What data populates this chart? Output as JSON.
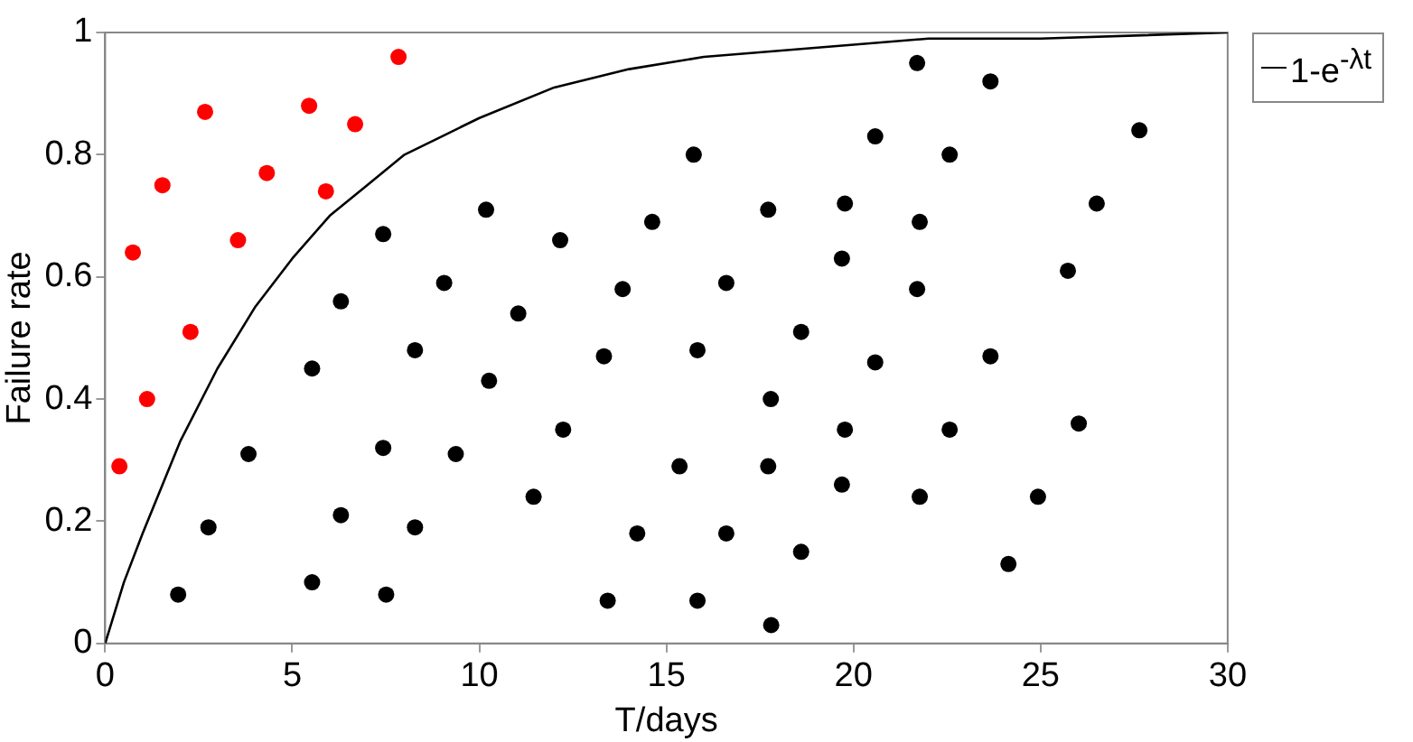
{
  "chart_data": {
    "type": "scatter",
    "xlabel": "T/days",
    "ylabel": "Failure rate",
    "xlim": [
      0,
      30
    ],
    "ylim": [
      0,
      1
    ],
    "xticks": [
      0,
      5,
      10,
      15,
      20,
      25,
      30
    ],
    "yticks": [
      0,
      0.2,
      0.4,
      0.6,
      0.8,
      1
    ],
    "grid": false,
    "legend": "top right",
    "marker": "circle",
    "series": [
      {
        "color": "#ff0000",
        "x": [
          0.38,
          0.74,
          1.12,
          1.53,
          2.28,
          2.67,
          3.55,
          4.32,
          5.45,
          5.9,
          6.68,
          7.84
        ],
        "values": [
          0.29,
          0.64,
          0.4,
          0.75,
          0.51,
          0.87,
          0.66,
          0.77,
          0.88,
          0.74,
          0.85,
          0.96
        ]
      },
      {
        "color": "#000000",
        "x": [
          1.95,
          2.76,
          3.83,
          5.53,
          5.53,
          6.3,
          6.3,
          7.43,
          7.43,
          7.51,
          8.28,
          8.28,
          9.06,
          9.37,
          10.18,
          10.26,
          11.04,
          11.45,
          12.16,
          12.24,
          13.33,
          13.43,
          13.83,
          14.22,
          14.62,
          15.35,
          15.73,
          15.83,
          15.83,
          16.6,
          16.6,
          17.72,
          17.79,
          17.72,
          17.8,
          18.6,
          18.6,
          19.77,
          19.69,
          19.77,
          19.69,
          21.7,
          23.66,
          20.58,
          22.57,
          27.64,
          26.5,
          21.77,
          25.73,
          21.7,
          20.58,
          23.66,
          22.57,
          26.02,
          21.77,
          24.93,
          24.14
        ],
        "values": [
          0.08,
          0.19,
          0.31,
          0.1,
          0.45,
          0.21,
          0.56,
          0.67,
          0.32,
          0.08,
          0.48,
          0.19,
          0.59,
          0.31,
          0.71,
          0.43,
          0.54,
          0.24,
          0.66,
          0.35,
          0.47,
          0.07,
          0.58,
          0.18,
          0.69,
          0.29,
          0.8,
          0.48,
          0.07,
          0.59,
          0.18,
          0.71,
          0.4,
          0.29,
          0.03,
          0.51,
          0.15,
          0.72,
          0.63,
          0.35,
          0.26,
          0.95,
          0.92,
          0.83,
          0.8,
          0.84,
          0.72,
          0.69,
          0.61,
          0.58,
          0.46,
          0.47,
          0.35,
          0.36,
          0.24,
          0.24,
          0.13
        ]
      },
      {
        "type": "line",
        "name": "1-e$^{-λt}$",
        "color": "#000000",
        "marker": "none",
        "line_style": "solid",
        "x": [
          0,
          0.5,
          1,
          2,
          3,
          4,
          5,
          6,
          7,
          8,
          9,
          10,
          12,
          14,
          16,
          18,
          20,
          22,
          25,
          30
        ],
        "values": [
          0,
          0.1,
          0.18,
          0.33,
          0.45,
          0.55,
          0.63,
          0.7,
          0.75,
          0.8,
          0.83,
          0.86,
          0.91,
          0.94,
          0.96,
          0.97,
          0.98,
          0.99,
          0.99,
          1
        ]
      }
    ]
  }
}
